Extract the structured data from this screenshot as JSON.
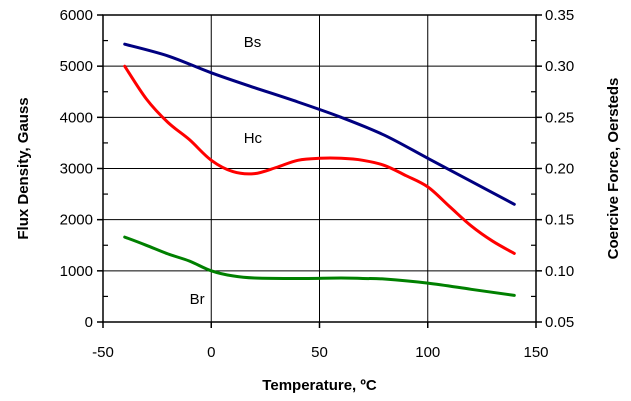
{
  "chart_data": {
    "type": "line",
    "title": "",
    "xlabel": "Temperature, ºC",
    "ylabel": "Flux Density, Gauss",
    "y2label": "Coercive Force, Oersteds",
    "xlim": [
      -50,
      150
    ],
    "ylim": [
      0,
      6000
    ],
    "y2lim": [
      0.05,
      0.35
    ],
    "x_ticks": [
      -50,
      0,
      50,
      100,
      150
    ],
    "y_ticks": [
      0,
      1000,
      2000,
      3000,
      4000,
      5000,
      6000
    ],
    "y2_ticks": [
      "0.05",
      "0.10",
      "0.15",
      "0.20",
      "0.25",
      "0.30",
      "0.35"
    ],
    "grid": true,
    "legend": "none",
    "series": [
      {
        "name": "Bs",
        "axis": "left",
        "color": "#000080",
        "points": [
          [
            -40,
            5430
          ],
          [
            -20,
            5200
          ],
          [
            0,
            4870
          ],
          [
            20,
            4580
          ],
          [
            40,
            4300
          ],
          [
            60,
            4000
          ],
          [
            80,
            3650
          ],
          [
            100,
            3200
          ],
          [
            120,
            2750
          ],
          [
            140,
            2300
          ]
        ]
      },
      {
        "name": "Hc",
        "axis": "right",
        "color": "#ff0000",
        "points": [
          [
            -40,
            0.3
          ],
          [
            -30,
            0.268
          ],
          [
            -20,
            0.245
          ],
          [
            -10,
            0.228
          ],
          [
            0,
            0.208
          ],
          [
            10,
            0.197
          ],
          [
            20,
            0.195
          ],
          [
            30,
            0.201
          ],
          [
            40,
            0.208
          ],
          [
            50,
            0.21
          ],
          [
            60,
            0.21
          ],
          [
            70,
            0.208
          ],
          [
            80,
            0.203
          ],
          [
            90,
            0.193
          ],
          [
            100,
            0.182
          ],
          [
            110,
            0.163
          ],
          [
            120,
            0.144
          ],
          [
            130,
            0.129
          ],
          [
            140,
            0.117
          ]
        ]
      },
      {
        "name": "Br",
        "axis": "left",
        "color": "#008000",
        "points": [
          [
            -40,
            1660
          ],
          [
            -30,
            1500
          ],
          [
            -20,
            1330
          ],
          [
            -10,
            1190
          ],
          [
            0,
            1000
          ],
          [
            10,
            900
          ],
          [
            20,
            860
          ],
          [
            40,
            850
          ],
          [
            60,
            860
          ],
          [
            70,
            850
          ],
          [
            80,
            840
          ],
          [
            100,
            760
          ],
          [
            120,
            640
          ],
          [
            140,
            520
          ]
        ]
      }
    ],
    "annotations": [
      {
        "text": "Bs",
        "x": 15,
        "y": 5370
      },
      {
        "text": "Hc",
        "x": 15,
        "y": 3500
      },
      {
        "text": "Br",
        "x": -10,
        "y": 350
      }
    ]
  }
}
